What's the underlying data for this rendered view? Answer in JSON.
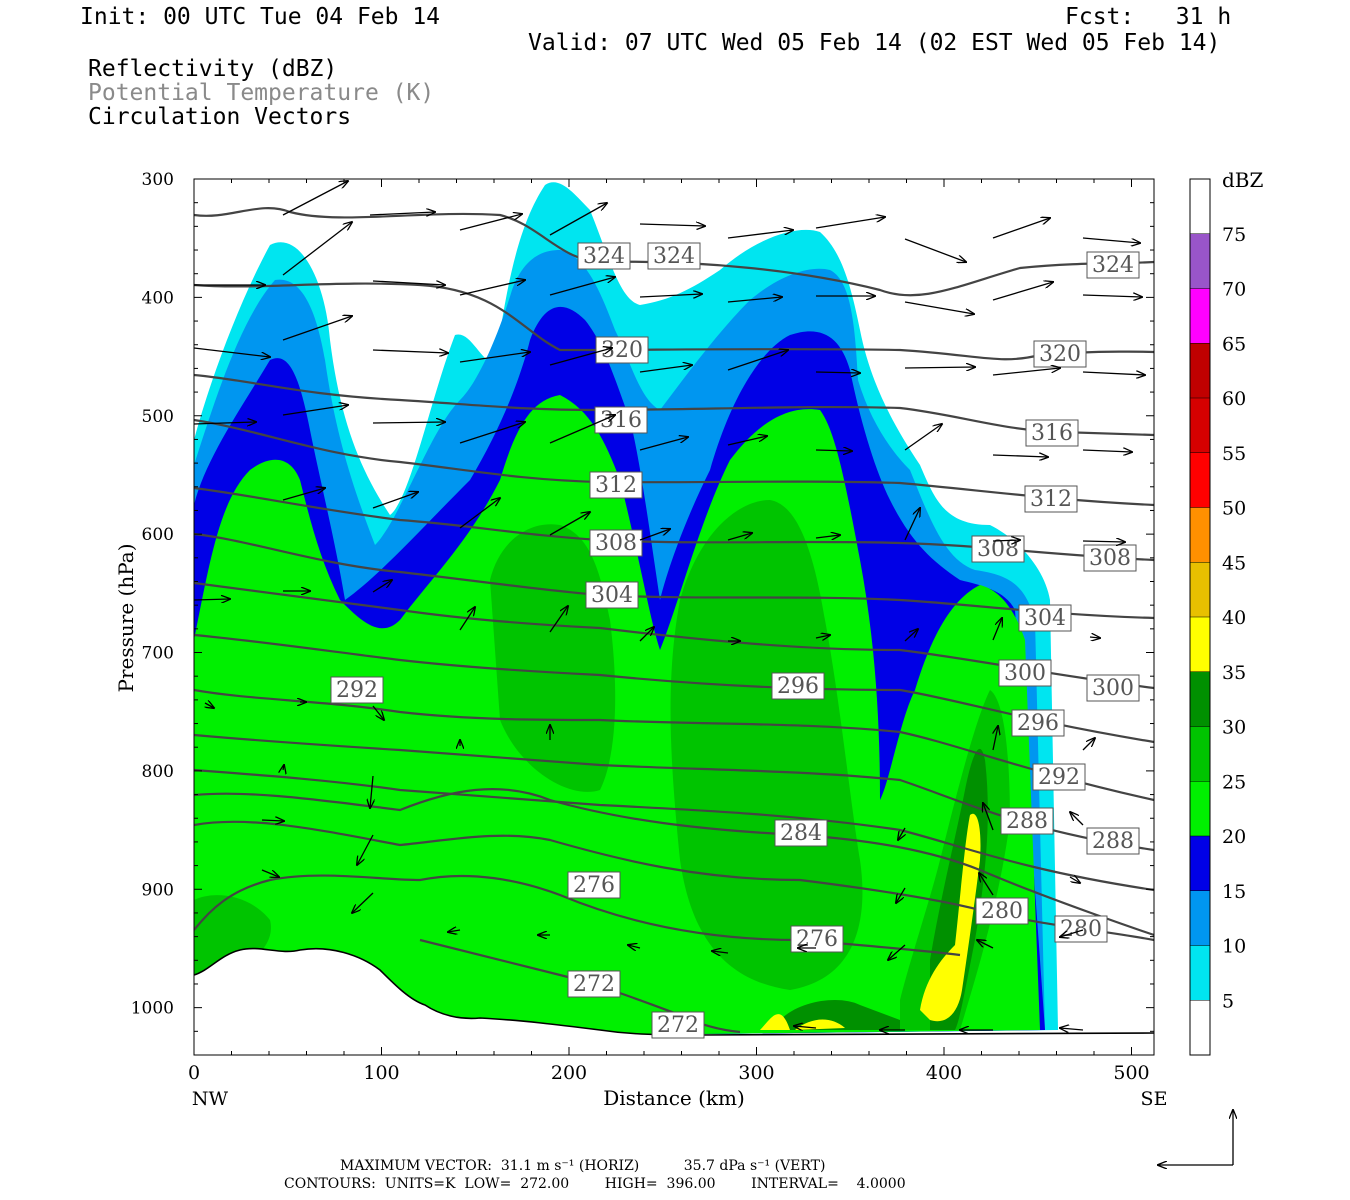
{
  "header": {
    "init": "Init: 00 UTC Tue 04 Feb 14",
    "fcst": "Fcst:   31 h",
    "valid": "Valid: 07 UTC Wed 05 Feb 14 (02 EST Wed 05 Feb 14)",
    "field1": "Reflectivity (dBZ)",
    "field2": "Potential Temperature (K)",
    "field3": "Circulation Vectors"
  },
  "footer": {
    "line1": "MAXIMUM VECTOR:  31.1 m s⁻¹ (HORIZ)          35.7 dPa s⁻¹ (VERT)",
    "line2": "CONTOURS:  UNITS=K  LOW=  272.00        HIGH=  396.00        INTERVAL=    4.0000"
  },
  "chart_data": {
    "type": "heatmap",
    "xlabel": "Distance (km)",
    "ylabel": "Pressure (hPa)",
    "xlim": [
      0,
      512
    ],
    "ylim": [
      1040,
      300
    ],
    "x_ticks": [
      0,
      100,
      200,
      300,
      400,
      500
    ],
    "y_ticks": [
      300,
      400,
      500,
      600,
      700,
      800,
      900,
      1000
    ],
    "x_end_labels": {
      "left": "NW",
      "right": "SE"
    },
    "colorbar": {
      "title": "dBZ",
      "levels": [
        5,
        10,
        15,
        20,
        25,
        30,
        35,
        40,
        45,
        50,
        55,
        60,
        65,
        70,
        75
      ],
      "colors": [
        "#ffffff",
        "#00e5f0",
        "#0096f0",
        "#0000e6",
        "#00f000",
        "#00c400",
        "#009000",
        "#ffff00",
        "#e8c000",
        "#ff9000",
        "#ff0000",
        "#d60000",
        "#c00000",
        "#ff00ff",
        "#9955c9",
        "#ffffff"
      ]
    },
    "theta_contour_labels": [
      272,
      276,
      280,
      284,
      288,
      292,
      296,
      300,
      304,
      308,
      312,
      316,
      320,
      324
    ],
    "contour_interval": 4.0
  }
}
